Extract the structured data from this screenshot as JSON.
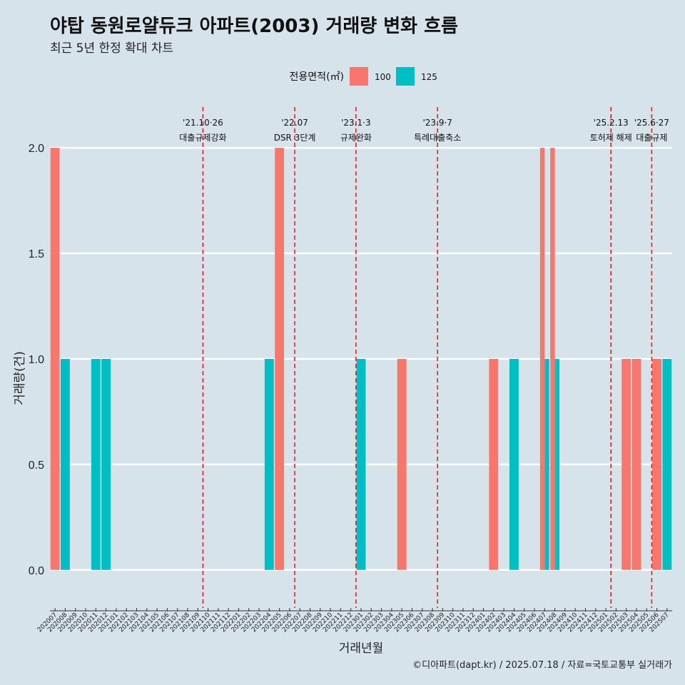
{
  "header": {
    "title": "야탑 동원로얄듀크 아파트(2003) 거래량 변화 흐름",
    "subtitle": "최근 5년 한정 확대 차트",
    "caption": "©디아파트(dapt.kr) / 2025.07.18 / 자료=국토교통부 실거래가"
  },
  "chart_data": {
    "type": "bar",
    "xlabel": "거래년월",
    "ylabel": "거래량(건)",
    "ylim": [
      -0.18,
      2.2
    ],
    "yticks": [
      "0.0",
      "0.5",
      "1.0",
      "1.5",
      "2.0"
    ],
    "grid": true,
    "legend": {
      "title": "전용면적(㎡)",
      "position": "top"
    },
    "categories": [
      "202007",
      "202008",
      "202009",
      "202010",
      "202011",
      "202012",
      "202101",
      "202102",
      "202103",
      "202104",
      "202105",
      "202106",
      "202107",
      "202108",
      "202109",
      "202110",
      "202111",
      "202112",
      "202201",
      "202202",
      "202203",
      "202204",
      "202205",
      "202206",
      "202207",
      "202208",
      "202209",
      "202210",
      "202211",
      "202212",
      "202301",
      "202302",
      "202303",
      "202304",
      "202305",
      "202306",
      "202307",
      "202308",
      "202309",
      "202310",
      "202311",
      "202312",
      "202401",
      "202402",
      "202403",
      "202404",
      "202405",
      "202406",
      "202407",
      "202408",
      "202409",
      "202410",
      "202411",
      "202412",
      "202501",
      "202502",
      "202503",
      "202504",
      "202505",
      "202506",
      "202507"
    ],
    "series": [
      {
        "name": "100",
        "color": "#f8766d",
        "points": [
          {
            "x": "202007",
            "y": 2
          },
          {
            "x": "202205",
            "y": 2
          },
          {
            "x": "202305",
            "y": 1
          },
          {
            "x": "202402",
            "y": 1
          },
          {
            "x": "202407",
            "y": 2
          },
          {
            "x": "202408",
            "y": 2
          },
          {
            "x": "202503",
            "y": 1
          },
          {
            "x": "202504",
            "y": 1
          },
          {
            "x": "202506",
            "y": 1
          }
        ]
      },
      {
        "name": "125",
        "color": "#00bfc4",
        "points": [
          {
            "x": "202008",
            "y": 1
          },
          {
            "x": "202011",
            "y": 1
          },
          {
            "x": "202012",
            "y": 1
          },
          {
            "x": "202204",
            "y": 1
          },
          {
            "x": "202301",
            "y": 1
          },
          {
            "x": "202404",
            "y": 1
          },
          {
            "x": "202407",
            "y": 1
          },
          {
            "x": "202408",
            "y": 1
          },
          {
            "x": "202507",
            "y": 1
          }
        ]
      }
    ],
    "events": [
      {
        "x": 15.0,
        "date": "'21.10·26",
        "label": "대출규제강화"
      },
      {
        "x": 24.0,
        "date": "'22.07",
        "label": "DSR 3단계"
      },
      {
        "x": 30.0,
        "date": "'23.1·3",
        "label": "규제완화"
      },
      {
        "x": 38.0,
        "date": "'23.9·7",
        "label": "특례대출축소"
      },
      {
        "x": 55.0,
        "date": "'25.2.13",
        "label": "토허제 해제"
      },
      {
        "x": 59.0,
        "date": "'25.6·27",
        "label": "대출규제"
      }
    ],
    "event_color": "#e8201a"
  }
}
